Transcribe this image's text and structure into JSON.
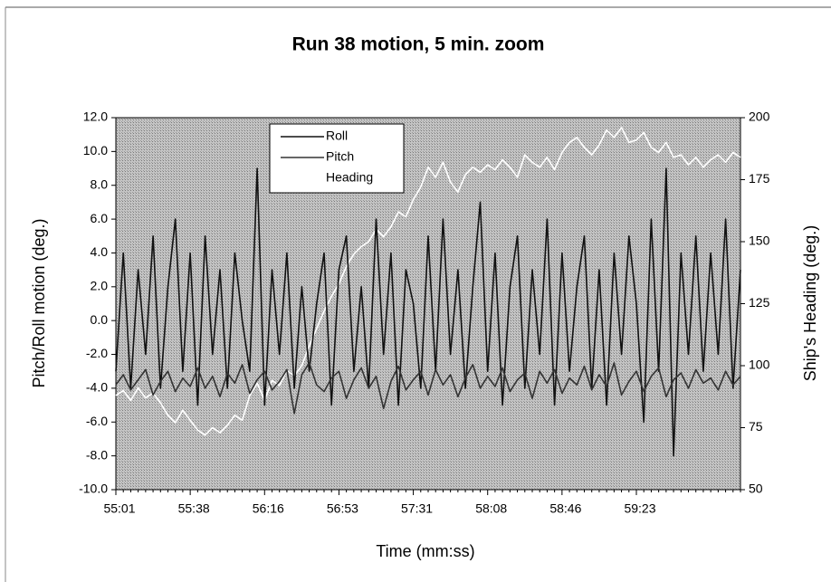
{
  "chart_data": {
    "type": "line",
    "title": "Run 38 motion, 5 min. zoom",
    "x_label": "Time (mm:ss)",
    "y_label": "Pitch/Roll motion (deg.)",
    "y2_label": "Ship's  Heading (deg.)",
    "legend": "top-left",
    "categories": [
      "55:01",
      null,
      null,
      null,
      null,
      null,
      null,
      null,
      null,
      null,
      "55:38",
      null,
      null,
      null,
      null,
      null,
      null,
      null,
      null,
      null,
      "56:16",
      null,
      null,
      null,
      null,
      null,
      null,
      null,
      null,
      null,
      "56:53",
      null,
      null,
      null,
      null,
      null,
      null,
      null,
      null,
      null,
      "57:31",
      null,
      null,
      null,
      null,
      null,
      null,
      null,
      null,
      null,
      "58:08",
      null,
      null,
      null,
      null,
      null,
      null,
      null,
      null,
      null,
      "58:46",
      null,
      null,
      null,
      null,
      null,
      null,
      null,
      null,
      null,
      "59:23",
      null,
      null,
      null,
      null,
      null,
      null,
      null,
      null,
      null,
      null,
      null,
      null,
      null,
      null
    ],
    "ylim": [
      -10,
      12
    ],
    "yticks": [
      {
        "value": -10,
        "label": "-10.0"
      },
      {
        "value": -8,
        "label": "-8.0"
      },
      {
        "value": -6,
        "label": "-6.0"
      },
      {
        "value": -4,
        "label": "-4.0"
      },
      {
        "value": -2,
        "label": "-2.0"
      },
      {
        "value": 0,
        "label": "0.0"
      },
      {
        "value": 2,
        "label": "2.0"
      },
      {
        "value": 4,
        "label": "4.0"
      },
      {
        "value": 6,
        "label": "6.0"
      },
      {
        "value": 8,
        "label": "8.0"
      },
      {
        "value": 10,
        "label": "10.0"
      },
      {
        "value": 12,
        "label": "12.0"
      }
    ],
    "y2lim": [
      50,
      200
    ],
    "y2ticks": [
      50,
      75,
      100,
      125,
      150,
      175,
      200
    ],
    "series": [
      {
        "name": "Heading",
        "color": "#ffffff",
        "axis": "y2",
        "values": [
          88,
          90,
          86,
          91,
          87,
          89,
          85,
          80,
          77,
          82,
          78,
          74,
          72,
          75,
          73,
          76,
          80,
          78,
          88,
          93,
          86,
          94,
          92,
          98,
          96,
          100,
          108,
          115,
          122,
          128,
          133,
          140,
          145,
          148,
          150,
          155,
          152,
          156,
          162,
          160,
          167,
          172,
          180,
          176,
          182,
          174,
          170,
          177,
          180,
          178,
          181,
          179,
          183,
          180,
          176,
          185,
          182,
          180,
          184,
          179,
          186,
          190,
          192,
          188,
          185,
          189,
          195,
          192,
          196,
          190,
          191,
          194,
          188,
          186,
          190,
          184,
          185,
          181,
          184,
          180,
          183,
          185,
          182,
          186,
          184
        ]
      },
      {
        "name": "Roll",
        "color": "#111111",
        "values": [
          -3,
          4,
          -4,
          3,
          -2,
          5,
          -4,
          2,
          6,
          -3,
          4,
          -5,
          5,
          -2,
          3,
          -4,
          4,
          0,
          -3,
          9,
          -5,
          3,
          -2,
          4,
          -4,
          2,
          -3,
          1,
          4,
          -5,
          3,
          5,
          -3,
          2,
          -4,
          6,
          -2,
          4,
          -5,
          3,
          1,
          -4,
          5,
          -3,
          6,
          -2,
          3,
          -4,
          2,
          7,
          -3,
          4,
          -5,
          2,
          5,
          -4,
          3,
          -2,
          6,
          -5,
          4,
          -3,
          2,
          5,
          -4,
          3,
          -5,
          4,
          -2,
          5,
          1,
          -6,
          6,
          -3,
          9,
          -8,
          4,
          -2,
          5,
          -3,
          4,
          -2,
          6,
          -4,
          3
        ]
      },
      {
        "name": "Pitch",
        "color": "#333333",
        "values": [
          -3.8,
          -3.2,
          -4.1,
          -3.5,
          -2.9,
          -4.4,
          -3.6,
          -3.0,
          -4.2,
          -3.4,
          -3.9,
          -2.8,
          -4.0,
          -3.3,
          -4.5,
          -3.1,
          -3.7,
          -2.6,
          -4.3,
          -3.5,
          -3.0,
          -4.1,
          -3.6,
          -2.9,
          -5.5,
          -3.2,
          -2.5,
          -3.8,
          -4.2,
          -3.4,
          -3.0,
          -4.6,
          -3.5,
          -2.8,
          -4.0,
          -3.3,
          -5.2,
          -3.6,
          -2.7,
          -4.1,
          -3.5,
          -3.0,
          -4.4,
          -2.9,
          -3.8,
          -3.2,
          -4.5,
          -3.4,
          -2.6,
          -4.0,
          -3.3,
          -3.9,
          -2.8,
          -4.2,
          -3.5,
          -3.1,
          -4.6,
          -3.0,
          -3.7,
          -2.9,
          -4.3,
          -3.4,
          -3.8,
          -2.7,
          -4.1,
          -3.2,
          -3.9,
          -2.5,
          -4.4,
          -3.6,
          -3.0,
          -4.2,
          -3.3,
          -2.8,
          -4.5,
          -3.5,
          -3.1,
          -4.0,
          -2.9,
          -3.7,
          -3.4,
          -4.1,
          -3.0,
          -3.8,
          -3.3
        ]
      }
    ]
  }
}
